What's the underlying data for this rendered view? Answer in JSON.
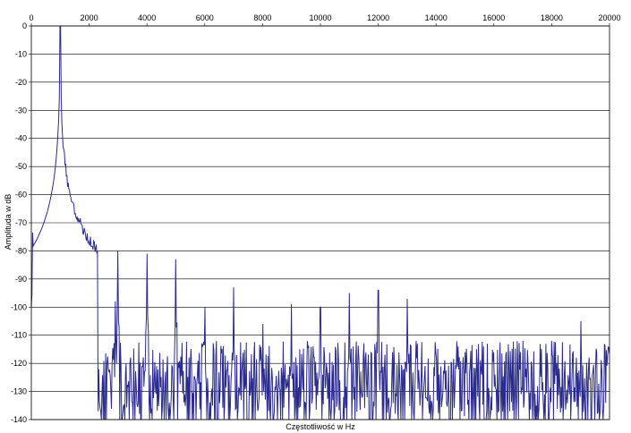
{
  "chart_data": {
    "type": "line",
    "title": "",
    "xlabel": "Częstotliwość w Hz",
    "ylabel": "Amplituda w dB",
    "xlim": [
      0,
      20000
    ],
    "ylim": [
      -140,
      0
    ],
    "x_ticks": [
      0,
      2000,
      4000,
      6000,
      8000,
      10000,
      12000,
      14000,
      16000,
      18000,
      20000
    ],
    "y_ticks": [
      0,
      -10,
      -20,
      -30,
      -40,
      -50,
      -60,
      -70,
      -80,
      -90,
      -100,
      -110,
      -120,
      -130,
      -140
    ],
    "grid": "horizontal",
    "legend": "none",
    "line_color": "#2b2b8f",
    "series": [
      {
        "noise_floor_db": -140,
        "fundamental": {
          "x": 1000,
          "y": 0
        },
        "harmonics": [
          {
            "x": 2000,
            "y": -95
          },
          {
            "x": 2900,
            "y": -98
          },
          {
            "x": 3000,
            "y": -80
          },
          {
            "x": 4000,
            "y": -81
          },
          {
            "x": 5000,
            "y": -83
          },
          {
            "x": 6000,
            "y": -100
          },
          {
            "x": 7000,
            "y": -93
          },
          {
            "x": 8000,
            "y": -106
          },
          {
            "x": 9000,
            "y": -99
          },
          {
            "x": 10000,
            "y": -100
          },
          {
            "x": 11000,
            "y": -95
          },
          {
            "x": 12000,
            "y": -94
          },
          {
            "x": 13000,
            "y": -97
          },
          {
            "x": 14000,
            "y": -116
          },
          {
            "x": 15000,
            "y": -116
          },
          {
            "x": 16000,
            "y": -116
          },
          {
            "x": 17000,
            "y": -112
          },
          {
            "x": 18000,
            "y": -112
          },
          {
            "x": 19000,
            "y": -105
          },
          {
            "x": 20000,
            "y": -117
          }
        ]
      }
    ]
  }
}
